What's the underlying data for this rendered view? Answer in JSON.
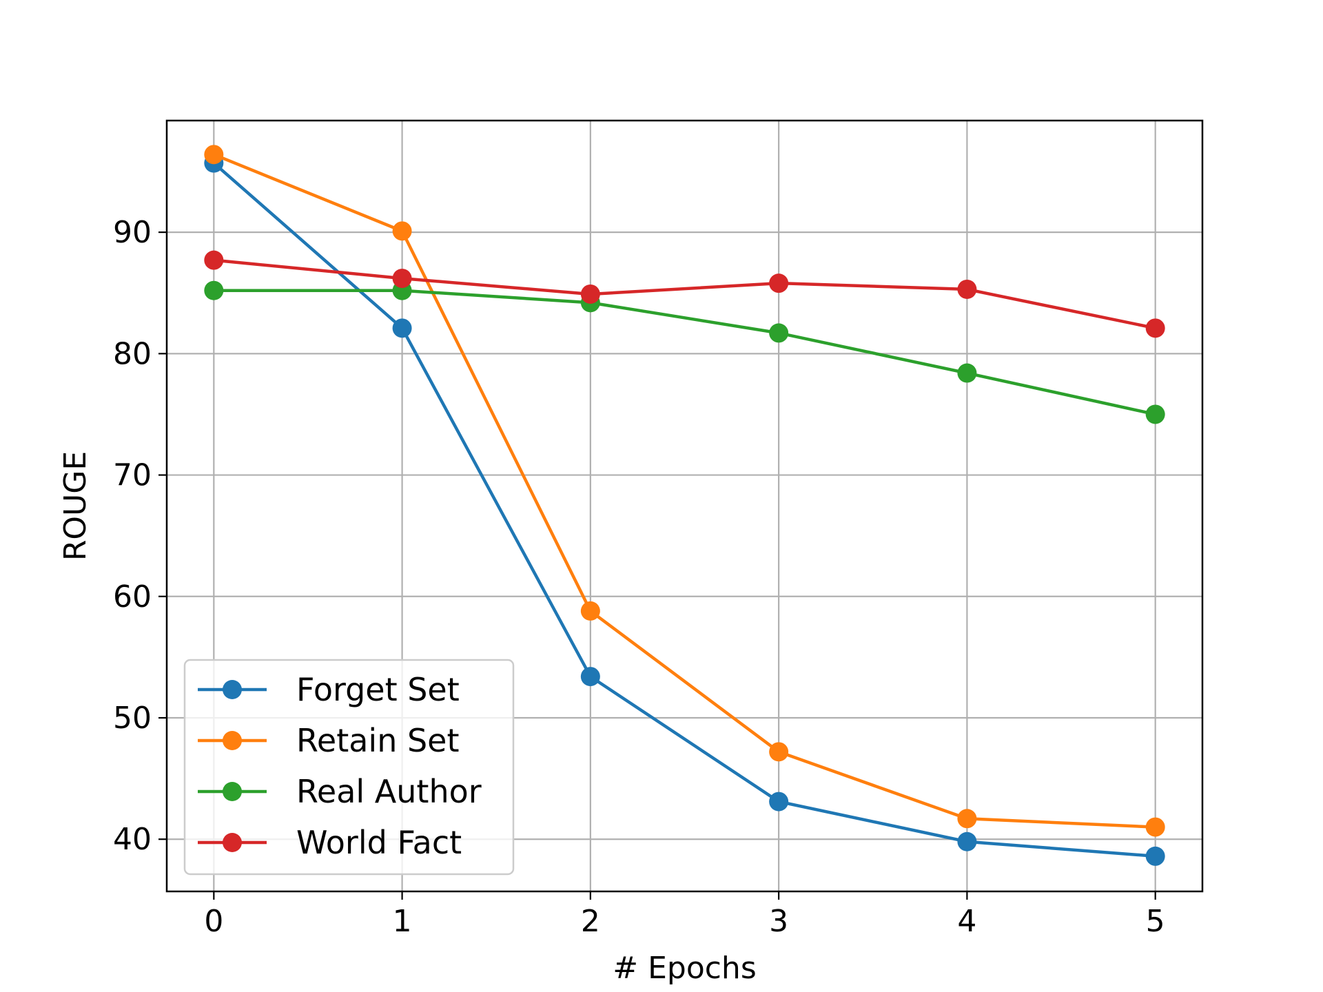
{
  "chart_data": {
    "type": "line",
    "xlabel": "# Epochs",
    "ylabel": "ROUGE",
    "x": [
      0,
      1,
      2,
      3,
      4,
      5
    ],
    "xlim": [
      -0.25,
      5.25
    ],
    "ylim": [
      35.7,
      99.2
    ],
    "xticks": [
      "0",
      "1",
      "2",
      "3",
      "4",
      "5"
    ],
    "yticks": [
      "40",
      "50",
      "60",
      "70",
      "80",
      "90"
    ],
    "ytick_values": [
      40,
      50,
      60,
      70,
      80,
      90
    ],
    "grid": true,
    "legend_position": "lower-left",
    "series": [
      {
        "name": "Forget Set",
        "color": "#1f77b4",
        "values": [
          95.7,
          82.1,
          53.4,
          43.1,
          39.8,
          38.6
        ]
      },
      {
        "name": "Retain Set",
        "color": "#ff7f0e",
        "values": [
          96.4,
          90.1,
          58.8,
          47.2,
          41.7,
          41.0
        ]
      },
      {
        "name": "Real Author",
        "color": "#2ca02c",
        "values": [
          85.2,
          85.2,
          84.2,
          81.7,
          78.4,
          75.0
        ]
      },
      {
        "name": "World Fact",
        "color": "#d62728",
        "values": [
          87.7,
          86.2,
          84.9,
          85.8,
          85.3,
          82.1
        ]
      }
    ]
  }
}
